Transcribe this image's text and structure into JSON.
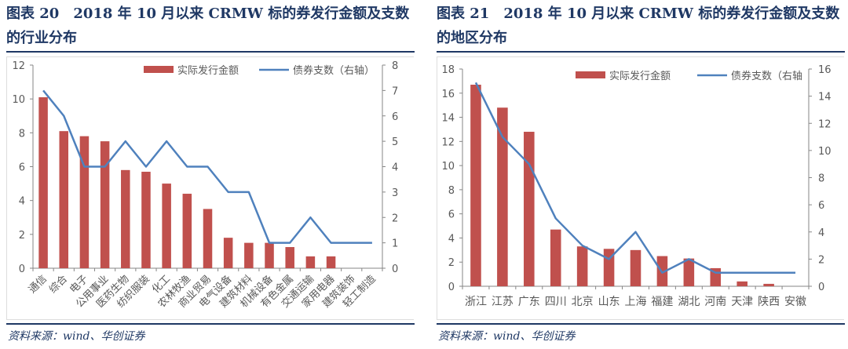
{
  "colors": {
    "bar": "#c0504d",
    "line": "#4f81bd",
    "axis": "#868686",
    "title": "#1f3864"
  },
  "chart_data": [
    {
      "type": "bar+line",
      "title": "图表 20　2018 年 10 月以来 CRMW 标的券发行金额及支数的行业分布",
      "source": "资料来源：wind、华创证券",
      "categories": [
        "通信",
        "综合",
        "电子",
        "公用事业",
        "医药生物",
        "纺织服装",
        "化工",
        "农林牧渔",
        "商业贸易",
        "电气设备",
        "建筑材料",
        "机械设备",
        "有色金属",
        "交通运输",
        "家用电器",
        "建筑装饰",
        "轻工制造"
      ],
      "series": [
        {
          "name": "实际发行金额",
          "type": "bar",
          "axis": "left",
          "values": [
            10.1,
            8.1,
            7.8,
            7.5,
            5.8,
            5.7,
            5.0,
            4.4,
            3.5,
            1.8,
            1.5,
            1.5,
            1.25,
            0.7,
            0.7,
            0,
            0
          ]
        },
        {
          "name": "债券支数（右轴）",
          "type": "line",
          "axis": "right",
          "values": [
            7,
            6,
            4,
            4,
            5,
            4,
            5,
            4,
            4,
            3,
            3,
            1,
            1,
            2,
            1,
            1,
            1
          ]
        }
      ],
      "ylim": [
        0,
        12
      ],
      "yticks": [
        0,
        2,
        4,
        6,
        8,
        10,
        12
      ],
      "y2lim": [
        0,
        8
      ],
      "y2ticks": [
        0,
        1,
        2,
        3,
        4,
        5,
        6,
        7,
        8
      ],
      "xlabel_rotation": "45deg",
      "legend": "top-right",
      "grid": false
    },
    {
      "type": "bar+line",
      "title": "图表 21　2018 年 10 月以来 CRMW 标的券发行金额及支数的地区分布",
      "source": "资料来源：wind、华创证券",
      "categories": [
        "浙江",
        "江苏",
        "广东",
        "四川",
        "北京",
        "山东",
        "上海",
        "福建",
        "湖北",
        "河南",
        "天津",
        "陕西",
        "安徽"
      ],
      "series": [
        {
          "name": "实际发行金额",
          "type": "bar",
          "axis": "left",
          "values": [
            16.7,
            14.8,
            12.8,
            4.7,
            3.3,
            3.1,
            3.0,
            2.5,
            2.3,
            1.5,
            0.4,
            0.2,
            0
          ]
        },
        {
          "name": "债券支数（右轴",
          "type": "line",
          "axis": "right",
          "values": [
            15,
            11,
            9,
            5,
            3,
            2,
            4,
            1,
            2,
            1,
            1,
            1,
            1
          ]
        }
      ],
      "ylim": [
        0,
        18
      ],
      "yticks": [
        0,
        2,
        4,
        6,
        8,
        10,
        12,
        14,
        16,
        18
      ],
      "y2lim": [
        0,
        16
      ],
      "y2ticks": [
        0,
        2,
        4,
        6,
        8,
        10,
        12,
        14,
        16
      ],
      "xlabel_rotation": "0deg",
      "legend": "top-right",
      "grid": false
    }
  ]
}
